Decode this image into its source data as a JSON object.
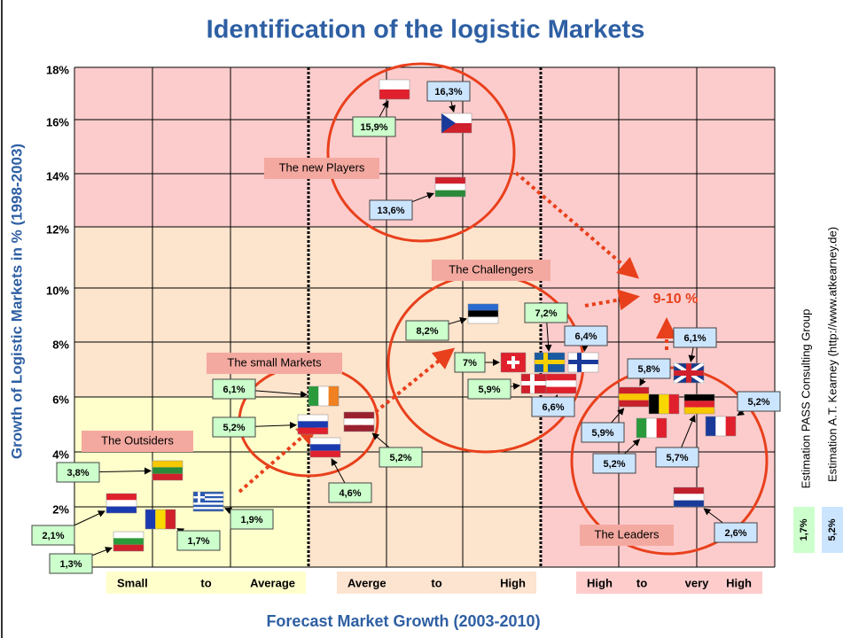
{
  "title": "Identification of the logistic Markets",
  "y_axis_label": "Growth of Logistic Markets in % (1998-2003)",
  "x_axis_label": "Forecast Market Growth (2003-2010)",
  "y_ticks": [
    "18%",
    "16%",
    "14%",
    "12%",
    "10%",
    "8%",
    "6%",
    "4%",
    "2%"
  ],
  "segments": [
    [
      "Small",
      "to",
      "Average"
    ],
    [
      "Averge",
      "to",
      "High"
    ],
    [
      "High",
      "to",
      "very",
      "High"
    ]
  ],
  "groups": [
    "The new Players",
    "The Challengers",
    "The small Markets",
    "The Outsiders",
    "The Leaders"
  ],
  "target": "9-10 %",
  "labels": [
    "16,3%",
    "15,9%",
    "13,6%",
    "8,2%",
    "7,2%",
    "6,4%",
    "7%",
    "5,9%",
    "6,6%",
    "6,1%",
    "5,8%",
    "5,2%",
    "5,9%",
    "5,2%",
    "5,7%",
    "2,6%",
    "6,1%",
    "5,2%",
    "5,2%",
    "4,6%",
    "3,8%",
    "2,1%",
    "1,9%",
    "1,7%",
    "1,3%"
  ],
  "notes": [
    "Estimation PASS Consulting Group",
    "Estimation A.T. Kearney (http://www.atkearney.de)"
  ],
  "legend": [
    "1,7%",
    "5,2%"
  ]
}
